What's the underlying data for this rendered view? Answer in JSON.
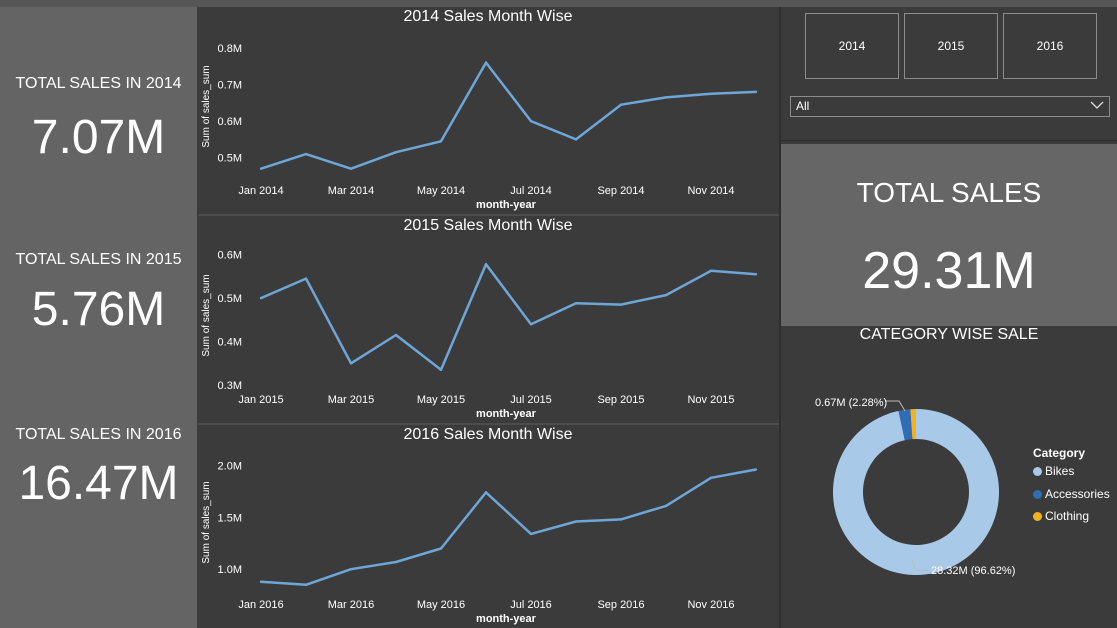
{
  "kpis": [
    {
      "title": "TOTAL SALES IN 2014",
      "value": "7.07M"
    },
    {
      "title": "TOTAL SALES IN 2015",
      "value": "5.76M"
    },
    {
      "title": "TOTAL SALES IN 2016",
      "value": "16.47M"
    }
  ],
  "slicer": {
    "years": [
      "2014",
      "2015",
      "2016"
    ],
    "dropdown_value": "All"
  },
  "total": {
    "title": "TOTAL SALES",
    "value": "29.31M"
  },
  "category": {
    "title": "CATEGORY WISE SALE",
    "legend_title": "Category",
    "items": [
      {
        "name": "Bikes",
        "color": "#a9c9e9",
        "value": 28.32,
        "label": "28.32M (96.62%)"
      },
      {
        "name": "Accessories",
        "color": "#2f6db5",
        "value": 0.67,
        "label": "0.67M (2.28%)"
      },
      {
        "name": "Clothing",
        "color": "#f3b220",
        "value": 0.32,
        "label": ""
      }
    ]
  },
  "colors": {
    "line": "#6ea6d8",
    "panel_bg": "#3b3b3b",
    "kpi_bg": "#646464",
    "card_bg": "#666666"
  },
  "chart_data": [
    {
      "type": "line",
      "title": "2014 Sales Month Wise",
      "xlabel": "month-year",
      "ylabel": "Sum of sales_sum",
      "x": [
        "Jan 2014",
        "Feb 2014",
        "Mar 2014",
        "Apr 2014",
        "May 2014",
        "Jun 2014",
        "Jul 2014",
        "Aug 2014",
        "Sep 2014",
        "Oct 2014",
        "Nov 2014",
        "Dec 2014"
      ],
      "xticks": [
        "Jan 2014",
        "Mar 2014",
        "May 2014",
        "Jul 2014",
        "Sep 2014",
        "Nov 2014"
      ],
      "values": [
        0.47,
        0.51,
        0.47,
        0.515,
        0.545,
        0.76,
        0.6,
        0.55,
        0.645,
        0.665,
        0.675,
        0.68
      ],
      "ylim": [
        0.45,
        0.83
      ],
      "yticks": [
        0.5,
        0.6,
        0.7,
        0.8
      ],
      "ytick_labels": [
        "0.5M",
        "0.6M",
        "0.7M",
        "0.8M"
      ]
    },
    {
      "type": "line",
      "title": "2015 Sales Month Wise",
      "xlabel": "month-year",
      "ylabel": "Sum of sales_sum",
      "x": [
        "Jan 2015",
        "Feb 2015",
        "Mar 2015",
        "Apr 2015",
        "May 2015",
        "Jun 2015",
        "Jul 2015",
        "Aug 2015",
        "Sep 2015",
        "Oct 2015",
        "Nov 2015",
        "Dec 2015"
      ],
      "xticks": [
        "Jan 2015",
        "Mar 2015",
        "May 2015",
        "Jul 2015",
        "Sep 2015",
        "Nov 2015"
      ],
      "values": [
        0.5,
        0.545,
        0.35,
        0.415,
        0.335,
        0.578,
        0.44,
        0.488,
        0.485,
        0.507,
        0.563,
        0.555
      ],
      "ylim": [
        0.3,
        0.62
      ],
      "yticks": [
        0.3,
        0.4,
        0.5,
        0.6
      ],
      "ytick_labels": [
        "0.3M",
        "0.4M",
        "0.5M",
        "0.6M"
      ]
    },
    {
      "type": "line",
      "title": "2016 Sales Month Wise",
      "xlabel": "month-year",
      "ylabel": "Sum of sales_sum",
      "x": [
        "Jan 2016",
        "Feb 2016",
        "Mar 2016",
        "Apr 2016",
        "May 2016",
        "Jun 2016",
        "Jul 2016",
        "Aug 2016",
        "Sep 2016",
        "Oct 2016",
        "Nov 2016",
        "Dec 2016"
      ],
      "xticks": [
        "Jan 2016",
        "Mar 2016",
        "May 2016",
        "Jul 2016",
        "Sep 2016",
        "Nov 2016"
      ],
      "values": [
        0.88,
        0.85,
        1.0,
        1.07,
        1.2,
        1.74,
        1.34,
        1.46,
        1.48,
        1.61,
        1.88,
        1.96
      ],
      "ylim": [
        0.8,
        2.1
      ],
      "yticks": [
        1.0,
        1.5,
        2.0
      ],
      "ytick_labels": [
        "1.0M",
        "1.5M",
        "2.0M"
      ]
    }
  ]
}
